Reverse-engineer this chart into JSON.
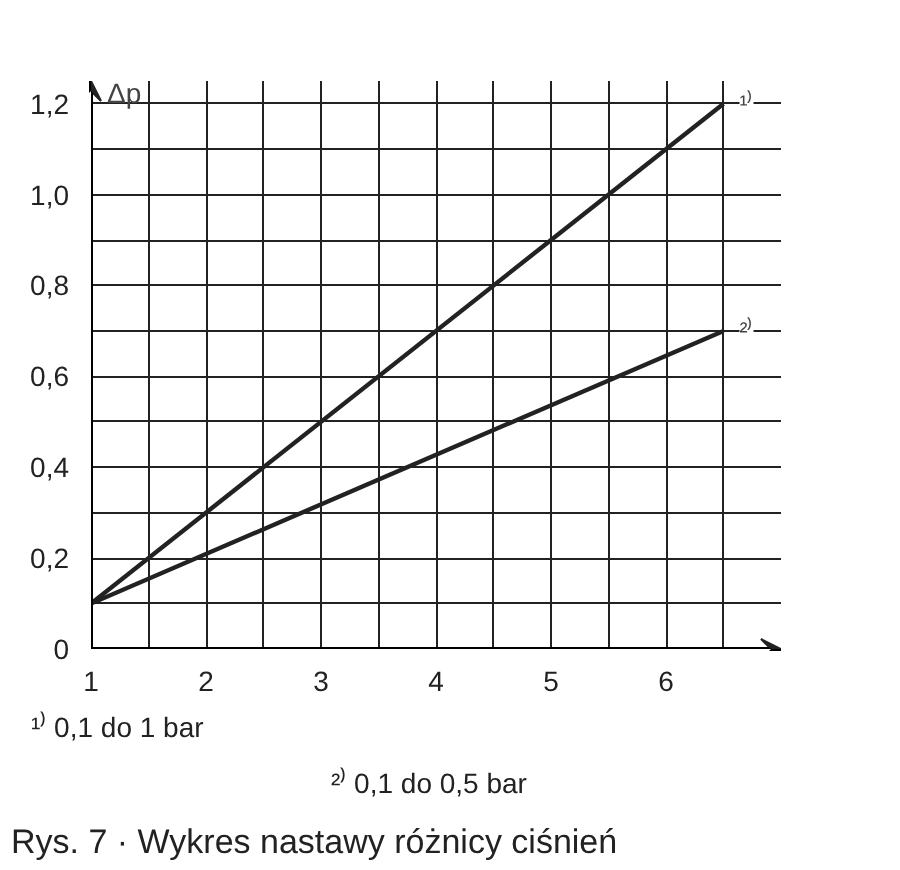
{
  "chart_data": {
    "type": "line",
    "ylabel": "Δp",
    "x": [
      1,
      6.5
    ],
    "series": [
      {
        "name": "¹⁾",
        "color": "#222222",
        "values": [
          0.1,
          1.2
        ]
      },
      {
        "name": "²⁾",
        "color": "#222222",
        "values": [
          0.1,
          0.7
        ]
      }
    ],
    "xlim": [
      1,
      7
    ],
    "ylim": [
      0,
      1.25
    ],
    "xticks": [
      1,
      {
        "value": 1.5,
        "label": null
      },
      2,
      {
        "value": 2.5,
        "label": null
      },
      3,
      {
        "value": 3.5,
        "label": null
      },
      4,
      {
        "value": 4.5,
        "label": null
      },
      5,
      {
        "value": 5.5,
        "label": null
      },
      6,
      {
        "value": 6.5,
        "label": null
      }
    ],
    "yticks": [
      {
        "value": 0,
        "label": "0"
      },
      {
        "value": 0.1,
        "label": null
      },
      {
        "value": 0.2,
        "label": "0,2"
      },
      {
        "value": 0.3,
        "label": null
      },
      {
        "value": 0.4,
        "label": "0,4"
      },
      {
        "value": 0.5,
        "label": null
      },
      {
        "value": 0.6,
        "label": "0,6"
      },
      {
        "value": 0.7,
        "label": null
      },
      {
        "value": 0.8,
        "label": "0,8"
      },
      {
        "value": 0.9,
        "label": null
      },
      {
        "value": 1.0,
        "label": "1,0"
      },
      {
        "value": 1.1,
        "label": null
      },
      {
        "value": 1.2,
        "label": "1,2"
      }
    ],
    "grid": true,
    "marker": "none",
    "line_style": "solid",
    "annotations": [
      "¹⁾ 0,1 do 1 bar",
      "²⁾ 0,1 do 0,5 bar",
      "Rys. 7 · Wykres nastawy różnicy ciśnień"
    ]
  }
}
